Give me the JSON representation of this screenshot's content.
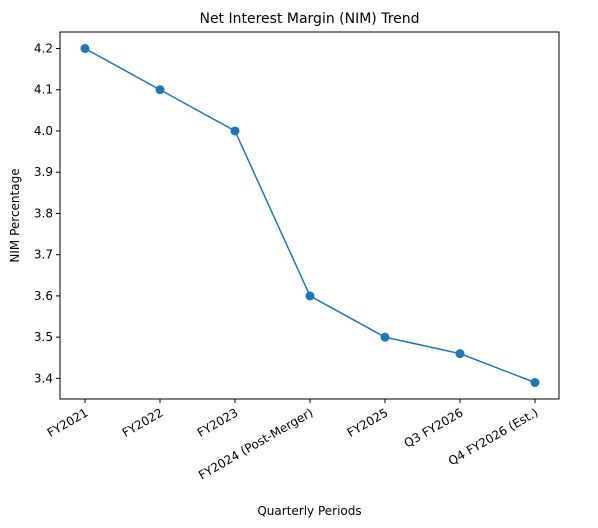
{
  "chart_data": {
    "type": "line",
    "title": "Net Interest Margin (NIM) Trend",
    "xlabel": "Quarterly Periods",
    "ylabel": "NIM Percentage",
    "categories": [
      "FY2021",
      "FY2022",
      "FY2023",
      "FY2024 (Post-Merger)",
      "FY2025",
      "Q3 FY2026",
      "Q4 FY2026 (Est.)"
    ],
    "series": [
      {
        "values": [
          4.2,
          4.1,
          4.0,
          3.6,
          3.5,
          3.46,
          3.39
        ],
        "color": "#1f77b4",
        "marker": "circle"
      }
    ],
    "y_ticks": [
      "3.4",
      "3.5",
      "3.6",
      "3.7",
      "3.8",
      "3.9",
      "4.0",
      "4.1",
      "4.2"
    ],
    "ylim": [
      3.35,
      4.24
    ],
    "grid": false,
    "legend": false
  }
}
